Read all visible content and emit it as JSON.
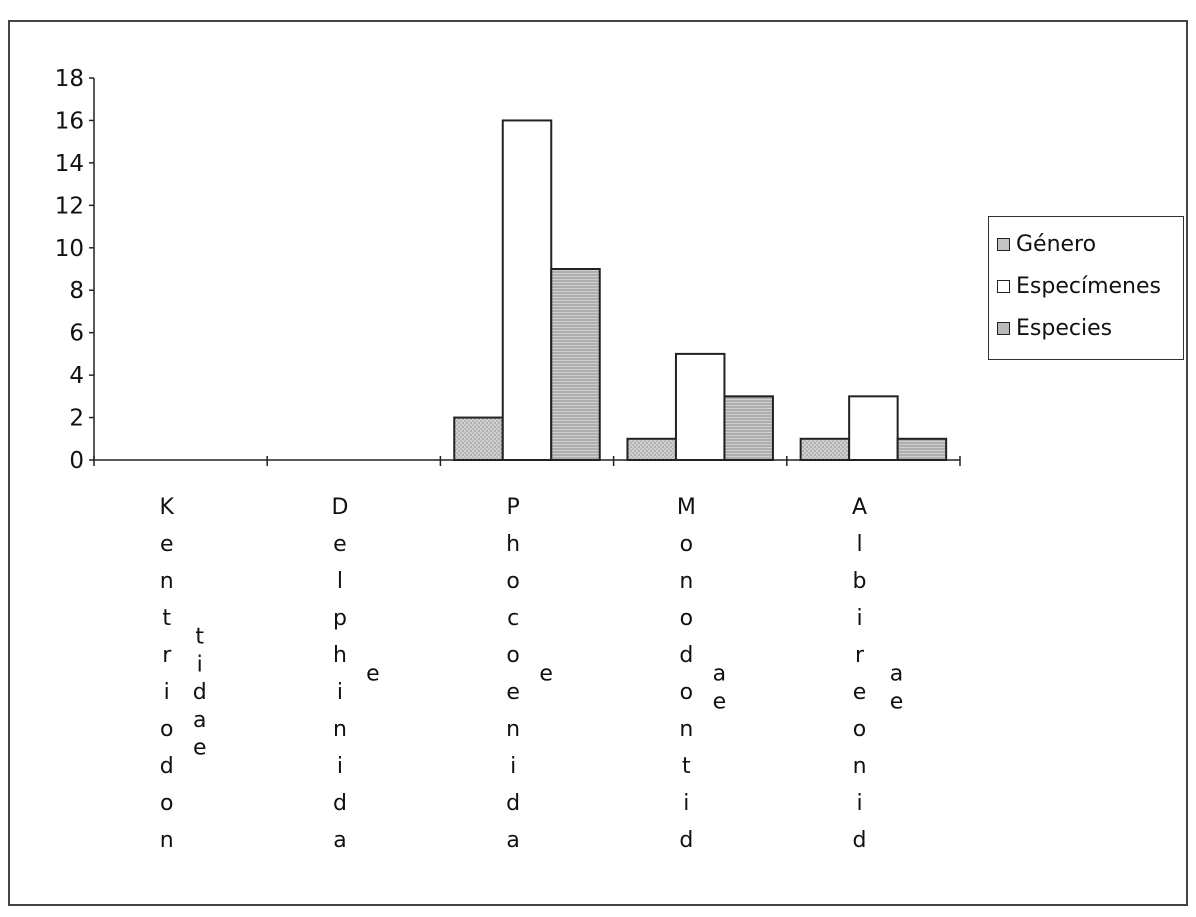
{
  "chart_data": {
    "type": "bar",
    "categories": [
      "Kentriodontidae",
      "Delphinidae",
      "Phocoenidae",
      "Monodontidae",
      "Albireonidae"
    ],
    "category_label_columns": [
      [
        "Kentriodon",
        "tidae"
      ],
      [
        "Delphinida",
        "e"
      ],
      [
        "Phocoenida",
        "e"
      ],
      [
        "Monodontid",
        "ae"
      ],
      [
        "Albireonid",
        "ae"
      ]
    ],
    "series": [
      {
        "name": "Género",
        "values": [
          0,
          0,
          2,
          1,
          1
        ],
        "color": "#c4c4c4"
      },
      {
        "name": "Especímenes",
        "values": [
          0,
          0,
          16,
          5,
          3
        ],
        "color": "#ffffff"
      },
      {
        "name": "Especies",
        "values": [
          0,
          0,
          9,
          3,
          1
        ],
        "color": "#b9b9b9"
      }
    ],
    "y_ticks": [
      0,
      2,
      4,
      6,
      8,
      10,
      12,
      14,
      16,
      18
    ],
    "ylim": [
      0,
      18
    ],
    "title": "",
    "xlabel": "",
    "ylabel": "",
    "grid": false,
    "legend_position": "right"
  }
}
